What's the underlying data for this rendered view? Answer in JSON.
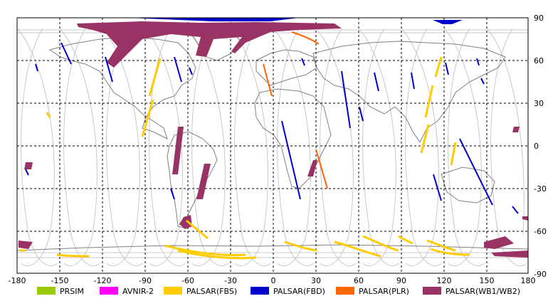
{
  "x_ticks": [
    "-180",
    "-150",
    "-120",
    "-90",
    "-60",
    "-30",
    "0",
    "30",
    "60",
    "90",
    "120",
    "150",
    "180"
  ],
  "y_ticks": [
    "90",
    "60",
    "30",
    "0",
    "-30",
    "-60",
    "-90"
  ],
  "legend": [
    {
      "label": "PRSIM",
      "color": "#99cc00"
    },
    {
      "label": "AVNIR-2",
      "color": "#ff00ff"
    },
    {
      "label": "PALSAR(FBS)",
      "color": "#ffcc00"
    },
    {
      "label": "PALSAR(FBD)",
      "color": "#0000cc"
    },
    {
      "label": "PALSAR(PLR)",
      "color": "#ff6600"
    },
    {
      "label": "PALSAR(WB1/WB2)",
      "color": "#993366"
    }
  ]
}
